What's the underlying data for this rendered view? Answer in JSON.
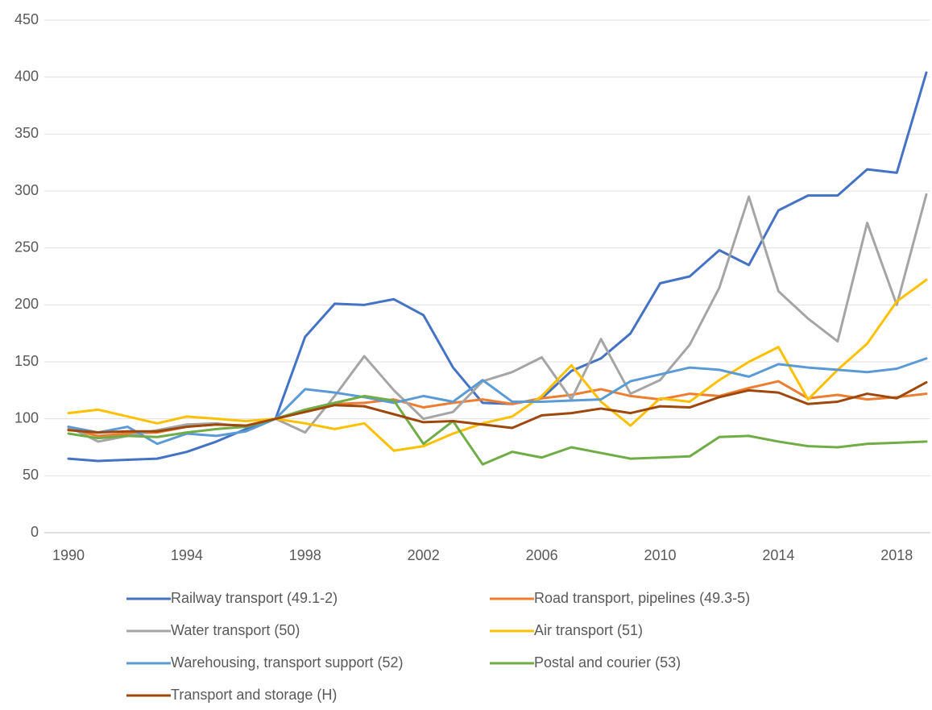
{
  "chart_data": {
    "type": "line",
    "x": [
      1990,
      1991,
      1992,
      1993,
      1994,
      1995,
      1996,
      1997,
      1998,
      1999,
      2000,
      2001,
      2002,
      2003,
      2004,
      2005,
      2006,
      2007,
      2008,
      2009,
      2010,
      2011,
      2012,
      2013,
      2014,
      2015,
      2016,
      2017,
      2018,
      2019
    ],
    "xlim": [
      1990,
      2019
    ],
    "xticks": [
      1990,
      1994,
      1998,
      2002,
      2006,
      2010,
      2014,
      2018
    ],
    "ylim": [
      0,
      450
    ],
    "yticks": [
      0,
      50,
      100,
      150,
      200,
      250,
      300,
      350,
      400,
      450
    ],
    "grid": true,
    "legend": "bottom",
    "series": [
      {
        "name": "Railway transport (49.1-2)",
        "color": "#4472c4",
        "values": [
          65,
          63,
          64,
          65,
          71,
          80,
          91,
          100,
          172,
          201,
          200,
          205,
          191,
          145,
          114,
          113,
          118,
          142,
          153,
          175,
          219,
          225,
          248,
          235,
          283,
          296,
          296,
          319,
          316,
          404
        ]
      },
      {
        "name": "Road transport, pipelines (49.3-5)",
        "color": "#ed7d31",
        "values": [
          91,
          85,
          87,
          88,
          93,
          95,
          94,
          100,
          108,
          113,
          114,
          117,
          110,
          114,
          117,
          113,
          118,
          121,
          126,
          120,
          117,
          122,
          120,
          127,
          133,
          118,
          121,
          117,
          119,
          122
        ]
      },
      {
        "name": "Water transport (50)",
        "color": "#a5a5a5",
        "values": [
          93,
          80,
          85,
          90,
          95,
          96,
          93,
          100,
          88,
          120,
          155,
          125,
          100,
          106,
          133,
          141,
          154,
          117,
          170,
          122,
          134,
          165,
          215,
          295,
          212,
          188,
          168,
          272,
          200,
          297
        ]
      },
      {
        "name": "Air transport (51)",
        "color": "#ffc000",
        "values": [
          105,
          108,
          102,
          96,
          102,
          100,
          98,
          100,
          96,
          91,
          96,
          72,
          76,
          87,
          96,
          102,
          120,
          147,
          115,
          94,
          118,
          115,
          134,
          150,
          163,
          117,
          143,
          166,
          203,
          222
        ]
      },
      {
        "name": "Warehousing, transport support (52)",
        "color": "#5b9bd5",
        "values": [
          93,
          88,
          93,
          78,
          87,
          85,
          89,
          100,
          126,
          123,
          119,
          114,
          120,
          115,
          134,
          115,
          115,
          116,
          117,
          133,
          139,
          145,
          143,
          137,
          148,
          145,
          143,
          141,
          144,
          153
        ]
      },
      {
        "name": "Postal and courier (53)",
        "color": "#70ad47",
        "values": [
          87,
          83,
          85,
          84,
          88,
          91,
          93,
          100,
          108,
          114,
          120,
          116,
          78,
          98,
          60,
          71,
          66,
          75,
          70,
          65,
          66,
          67,
          84,
          85,
          80,
          76,
          75,
          78,
          79,
          80
        ]
      },
      {
        "name": "Transport and storage (H)",
        "color": "#9e480e",
        "values": [
          90,
          88,
          89,
          89,
          93,
          95,
          94,
          100,
          106,
          112,
          111,
          104,
          97,
          98,
          95,
          92,
          103,
          105,
          109,
          105,
          111,
          110,
          119,
          125,
          123,
          113,
          115,
          122,
          118,
          132
        ]
      }
    ]
  }
}
